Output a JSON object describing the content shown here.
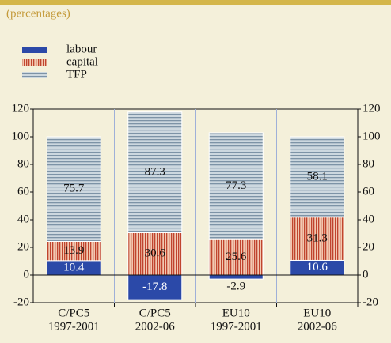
{
  "chart_data": {
    "type": "stacked-bar",
    "subtitle": "(percentages)",
    "categories": [
      [
        "C/PC5",
        "1997-2001"
      ],
      [
        "C/PC5",
        "2002-06"
      ],
      [
        "EU10",
        "1997-2001"
      ],
      [
        "EU10",
        "2002-06"
      ]
    ],
    "series": [
      {
        "name": "labour",
        "color": "#2b49a8",
        "pattern": "solid",
        "values": [
          10.4,
          -17.8,
          -2.9,
          10.6
        ]
      },
      {
        "name": "capital",
        "color": "#c0452e",
        "pattern": "vertical",
        "values": [
          13.9,
          30.6,
          25.6,
          31.3
        ]
      },
      {
        "name": "TFP",
        "color": "#7d93a6",
        "pattern": "horizontal",
        "values": [
          75.7,
          87.3,
          77.3,
          58.1
        ]
      }
    ],
    "ylim": [
      -20,
      120
    ],
    "yticks": [
      -20,
      0,
      20,
      40,
      60,
      80,
      100,
      120
    ]
  }
}
